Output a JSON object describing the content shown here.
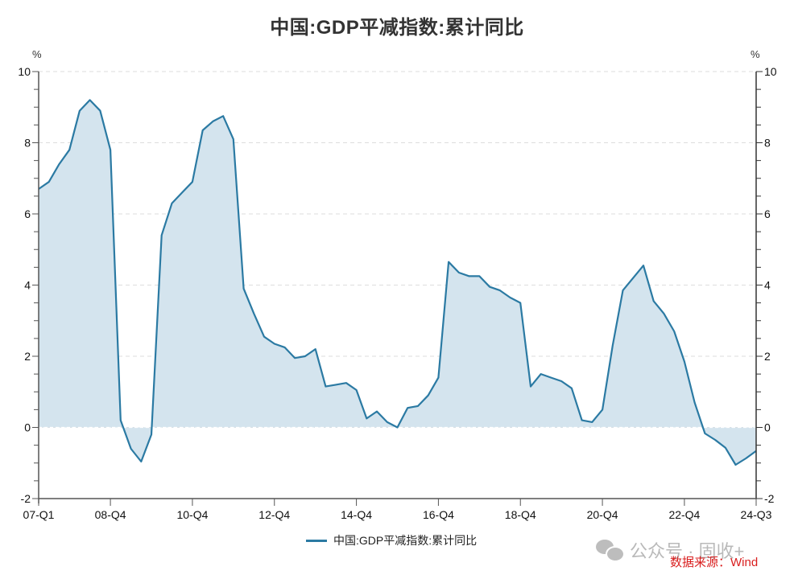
{
  "title": "中国:GDP平减指数:累计同比",
  "left_unit": "%",
  "right_unit": "%",
  "legend": {
    "label": "中国:GDP平减指数:累计同比",
    "color": "#2b7aa3"
  },
  "watermark": "公众号 · 固收+",
  "source": "数据来源：Wind",
  "colors": {
    "line": "#2b7aa3",
    "fill": "#d4e4ee",
    "grid": "#dddddd",
    "axis": "#555555",
    "source": "#d91e1e"
  },
  "chart_data": {
    "type": "area",
    "title": "中国:GDP平减指数:累计同比",
    "xlabel": "",
    "ylabel": "%",
    "ylim": [
      -2,
      10
    ],
    "yticks": [
      -2,
      0,
      2,
      4,
      6,
      8,
      10
    ],
    "grid": true,
    "legend_position": "bottom",
    "xtick_labels": [
      "07-Q1",
      "08-Q4",
      "10-Q4",
      "12-Q4",
      "14-Q4",
      "16-Q4",
      "18-Q4",
      "20-Q4",
      "22-Q4",
      "24-Q3"
    ],
    "x": [
      "07-Q1",
      "07-Q2",
      "07-Q3",
      "07-Q4",
      "08-Q1",
      "08-Q2",
      "08-Q3",
      "08-Q4",
      "09-Q1",
      "09-Q2",
      "09-Q3",
      "09-Q4",
      "10-Q1",
      "10-Q2",
      "10-Q3",
      "10-Q4",
      "11-Q1",
      "11-Q2",
      "11-Q3",
      "11-Q4",
      "12-Q1",
      "12-Q2",
      "12-Q3",
      "12-Q4",
      "13-Q1",
      "13-Q2",
      "13-Q3",
      "13-Q4",
      "14-Q1",
      "14-Q2",
      "14-Q3",
      "14-Q4",
      "15-Q1",
      "15-Q2",
      "15-Q3",
      "15-Q4",
      "16-Q1",
      "16-Q2",
      "16-Q3",
      "16-Q4",
      "17-Q1",
      "17-Q2",
      "17-Q3",
      "17-Q4",
      "18-Q1",
      "18-Q2",
      "18-Q3",
      "18-Q4",
      "19-Q1",
      "19-Q2",
      "19-Q3",
      "19-Q4",
      "20-Q1",
      "20-Q2",
      "20-Q3",
      "20-Q4",
      "21-Q1",
      "21-Q2",
      "21-Q3",
      "21-Q4",
      "22-Q1",
      "22-Q2",
      "22-Q3",
      "22-Q4",
      "23-Q1",
      "23-Q2",
      "23-Q3",
      "23-Q4",
      "24-Q1",
      "24-Q2",
      "24-Q3"
    ],
    "series": [
      {
        "name": "中国:GDP平减指数:累计同比",
        "values": [
          6.7,
          6.9,
          7.4,
          7.8,
          8.9,
          9.2,
          8.9,
          7.8,
          0.2,
          -0.6,
          -0.96,
          -0.2,
          5.4,
          6.3,
          6.6,
          6.9,
          8.35,
          8.6,
          8.75,
          8.1,
          3.9,
          3.2,
          2.55,
          2.35,
          2.25,
          1.95,
          2.0,
          2.2,
          1.15,
          1.2,
          1.25,
          1.05,
          0.25,
          0.45,
          0.15,
          0.0,
          0.55,
          0.6,
          0.9,
          1.4,
          4.65,
          4.35,
          4.25,
          4.25,
          3.95,
          3.85,
          3.65,
          3.5,
          1.15,
          1.5,
          1.4,
          1.3,
          1.1,
          0.2,
          0.15,
          0.5,
          2.3,
          3.85,
          4.2,
          4.55,
          3.55,
          3.2,
          2.7,
          1.85,
          0.7,
          -0.17,
          -0.35,
          -0.57,
          -1.05,
          -0.87,
          -0.66
        ]
      }
    ]
  }
}
